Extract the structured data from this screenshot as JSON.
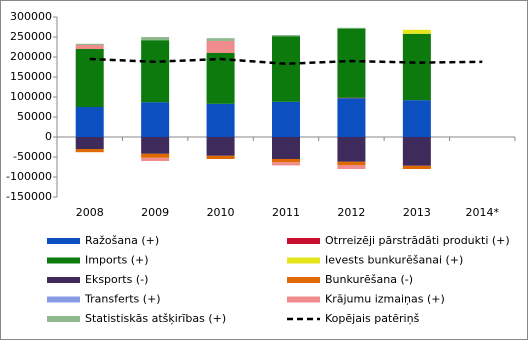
{
  "chart_data": {
    "type": "bar",
    "stacked": true,
    "categories": [
      "2008",
      "2009",
      "2010",
      "2011",
      "2012",
      "2013",
      "2014*"
    ],
    "ylim": [
      -150000,
      300000
    ],
    "yticks": [
      -150000,
      -100000,
      -50000,
      0,
      50000,
      100000,
      150000,
      200000,
      250000,
      300000
    ],
    "grid": false,
    "series": [
      {
        "name": "Ražošana (+)",
        "color": "#0b4fc0",
        "values": [
          75000,
          87000,
          83000,
          88000,
          97000,
          92000,
          null
        ]
      },
      {
        "name": "Otrreizēji pārstrādāti produkti (+)",
        "color": "#c8102e",
        "values": [
          0,
          0,
          0,
          0,
          1000,
          0,
          null
        ]
      },
      {
        "name": "Imports (+)",
        "color": "#0c7a0c",
        "values": [
          145000,
          155000,
          127000,
          164000,
          173000,
          166000,
          null
        ]
      },
      {
        "name": "Ievests bunkurēšanai (+)",
        "color": "#e6e61a",
        "values": [
          0,
          0,
          0,
          0,
          0,
          10000,
          null
        ]
      },
      {
        "name": "Eksports (-)",
        "color": "#3f2a5c",
        "values": [
          -30000,
          -42000,
          -47000,
          -55000,
          -62000,
          -72000,
          null
        ]
      },
      {
        "name": "Bunkurēšana (-)",
        "color": "#e06a00",
        "values": [
          -8000,
          -10000,
          -8000,
          -8000,
          -8000,
          -8000,
          null
        ]
      },
      {
        "name": "Transferts (+)",
        "color": "#8a9be6",
        "values": [
          0,
          0,
          0,
          0,
          0,
          0,
          null
        ]
      },
      {
        "name": "Krājumu izmaiņas (+)",
        "color": "#f08c8c",
        "values": [
          10000,
          -8000,
          30000,
          -8000,
          -10000,
          0,
          null
        ]
      },
      {
        "name": "Statistiskās atšķirības (+)",
        "color": "#8fb88f",
        "values": [
          3000,
          8000,
          7000,
          3000,
          2000,
          0,
          null
        ]
      },
      {
        "name": "Kopējais patēriņš",
        "color": "#000000",
        "type": "line",
        "dashed": true,
        "values": [
          195000,
          188000,
          195000,
          183000,
          190000,
          186000,
          188000
        ]
      }
    ]
  }
}
